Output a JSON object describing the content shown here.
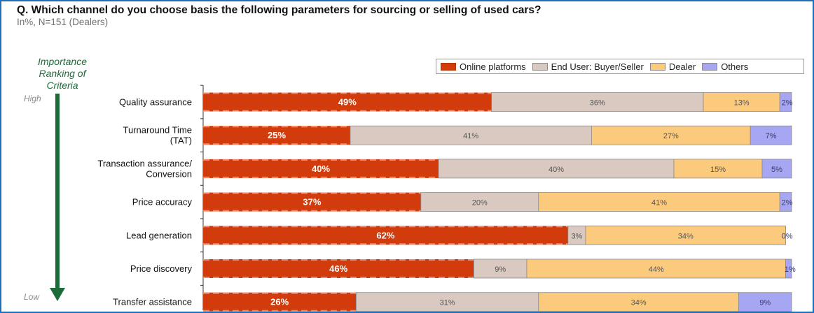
{
  "title": "Q. Which channel do you choose basis the following parameters for sourcing or selling of used cars?",
  "subtitle": "In%, N=151 (Dealers)",
  "ranking_label": "Importance Ranking of Criteria",
  "ranking_high": "High",
  "ranking_low": "Low",
  "colors": {
    "online": "#d23c0c",
    "end_user": "#d9c9c1",
    "dealer": "#fcca7c",
    "others": "#a6a6f2",
    "arrow": "#1e6b3a"
  },
  "chart_data": {
    "type": "bar",
    "orientation": "horizontal",
    "stacked": true,
    "title": "Q. Which channel do you choose basis the following parameters for sourcing or selling of used cars?",
    "subtitle": "In%, N=151 (Dealers)",
    "categories": [
      "Quality assurance",
      "Turnaround Time (TAT)",
      "Transaction assurance/ Conversion",
      "Price accuracy",
      "Lead generation",
      "Price discovery",
      "Transfer assistance"
    ],
    "category_lines": [
      [
        "Quality assurance"
      ],
      [
        "Turnaround Time",
        "(TAT)"
      ],
      [
        "Transaction assurance/",
        "Conversion"
      ],
      [
        "Price accuracy"
      ],
      [
        "Lead generation"
      ],
      [
        "Price discovery"
      ],
      [
        "Transfer assistance"
      ]
    ],
    "series": [
      {
        "name": "Online platforms",
        "values": [
          49,
          25,
          40,
          37,
          62,
          46,
          26
        ],
        "labels": [
          "49%",
          "25%",
          "40%",
          "37%",
          "62%",
          "46%",
          "26%"
        ]
      },
      {
        "name": "End User: Buyer/Seller",
        "values": [
          36,
          41,
          40,
          20,
          3,
          9,
          31
        ],
        "labels": [
          "36%",
          "41%",
          "40%",
          "20%",
          "3%",
          "9%",
          "31%"
        ]
      },
      {
        "name": "Dealer",
        "values": [
          13,
          27,
          15,
          41,
          34,
          44,
          34
        ],
        "labels": [
          "13%",
          "27%",
          "15%",
          "41%",
          "34%",
          "44%",
          "34%"
        ]
      },
      {
        "name": "Others",
        "values": [
          2,
          7,
          5,
          2,
          0,
          1,
          9
        ],
        "labels": [
          "2%",
          "7%",
          "5%",
          "2%",
          "0%",
          "1%",
          "9%"
        ]
      }
    ],
    "xlim": [
      0,
      100
    ],
    "legend_position": "top-right",
    "grid": false
  }
}
